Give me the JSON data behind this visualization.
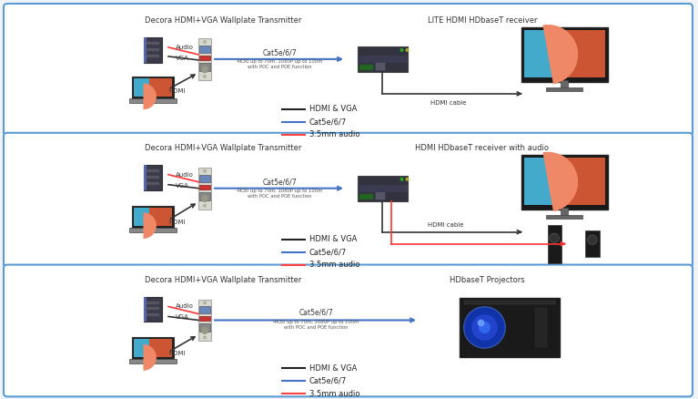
{
  "bg_color": "#f0f4f8",
  "panel_bg": "#ffffff",
  "border_color": "#5b9bd5",
  "panels": [
    {
      "title": "Decora HDMI+VGA Wallplate Transmitter",
      "receiver_title": "LITE HDMI HDbaseT receiver",
      "cat_label": "Cat5e/6/7",
      "cat_sub1": "4K30 up to 70m, 1080P up to 100m",
      "cat_sub2": "with POC and POE function",
      "hdmi_cable_label": "HDMI cable",
      "audio_label": "Audio",
      "vga_label": "VGA",
      "hdmi_label": "HDMI",
      "legend": [
        "HDMI & VGA",
        "Cat5e/6/7",
        "3.5mm audio"
      ],
      "legend_colors": [
        "#222222",
        "#4472c4",
        "#ff4040"
      ],
      "has_speaker": false,
      "yb": 0.685,
      "yt": 0.975
    },
    {
      "title": "Decora HDMI+VGA Wallplate Transmitter",
      "receiver_title": "HDMI HDbaseT receiver with audio",
      "cat_label": "Cat5e/6/7",
      "cat_sub1": "4K30 up to 70m, 1080P up to 100m",
      "cat_sub2": "with POC and POE function",
      "hdmi_cable_label": "HDMI cable",
      "audio_label": "Audio",
      "vga_label": "VGA",
      "hdmi_label": "HDMI",
      "legend": [
        "HDMI & VGA",
        "Cat5e/6/7",
        "3.5mm audio"
      ],
      "legend_colors": [
        "#222222",
        "#4472c4",
        "#ff4040"
      ],
      "has_speaker": true,
      "yb": 0.355,
      "yt": 0.65
    },
    {
      "title": "Decora HDMI+VGA Wallplate Transmitter",
      "receiver_title": "HDbaseT Projectors",
      "cat_label": "Cat5e/6/7",
      "cat_sub1": "4K30 up to 70m, 1080P up to 100m",
      "cat_sub2": "with POC and POE function",
      "audio_label": "Audio",
      "vga_label": "VGA",
      "hdmi_label": "HDMI",
      "legend": [
        "HDMI & VGA",
        "Cat5e/6/7",
        "3.5mm audio"
      ],
      "legend_colors": [
        "#222222",
        "#4472c4",
        "#ff4040"
      ],
      "has_speaker": false,
      "yb": 0.015,
      "yt": 0.325
    }
  ]
}
